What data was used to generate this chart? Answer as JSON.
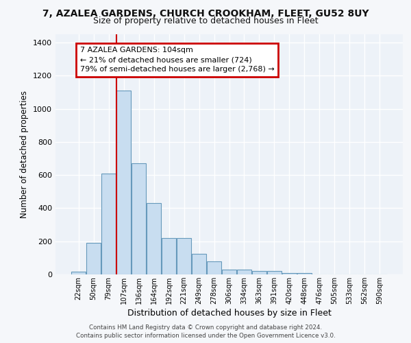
{
  "title_line1": "7, AZALEA GARDENS, CHURCH CROOKHAM, FLEET, GU52 8UY",
  "title_line2": "Size of property relative to detached houses in Fleet",
  "xlabel": "Distribution of detached houses by size in Fleet",
  "ylabel": "Number of detached properties",
  "categories": [
    "22sqm",
    "50sqm",
    "79sqm",
    "107sqm",
    "136sqm",
    "164sqm",
    "192sqm",
    "221sqm",
    "249sqm",
    "278sqm",
    "306sqm",
    "334sqm",
    "363sqm",
    "391sqm",
    "420sqm",
    "448sqm",
    "476sqm",
    "505sqm",
    "533sqm",
    "562sqm",
    "590sqm"
  ],
  "values": [
    15,
    190,
    610,
    1110,
    670,
    430,
    220,
    220,
    125,
    80,
    30,
    28,
    20,
    20,
    10,
    10,
    2,
    2,
    2,
    2,
    2
  ],
  "bar_color": "#c8ddf0",
  "bar_edge_color": "#6699bb",
  "red_line_x": 2.5,
  "annotation_text": "7 AZALEA GARDENS: 104sqm\n← 21% of detached houses are smaller (724)\n79% of semi-detached houses are larger (2,768) →",
  "annotation_box_facecolor": "#ffffff",
  "annotation_box_edgecolor": "#cc0000",
  "red_line_color": "#cc0000",
  "ylim": [
    0,
    1450
  ],
  "yticks": [
    0,
    200,
    400,
    600,
    800,
    1000,
    1200,
    1400
  ],
  "ax_facecolor": "#edf2f8",
  "fig_facecolor": "#f5f7fa",
  "grid_color": "#ffffff",
  "footer_text": "Contains HM Land Registry data © Crown copyright and database right 2024.\nContains public sector information licensed under the Open Government Licence v3.0."
}
